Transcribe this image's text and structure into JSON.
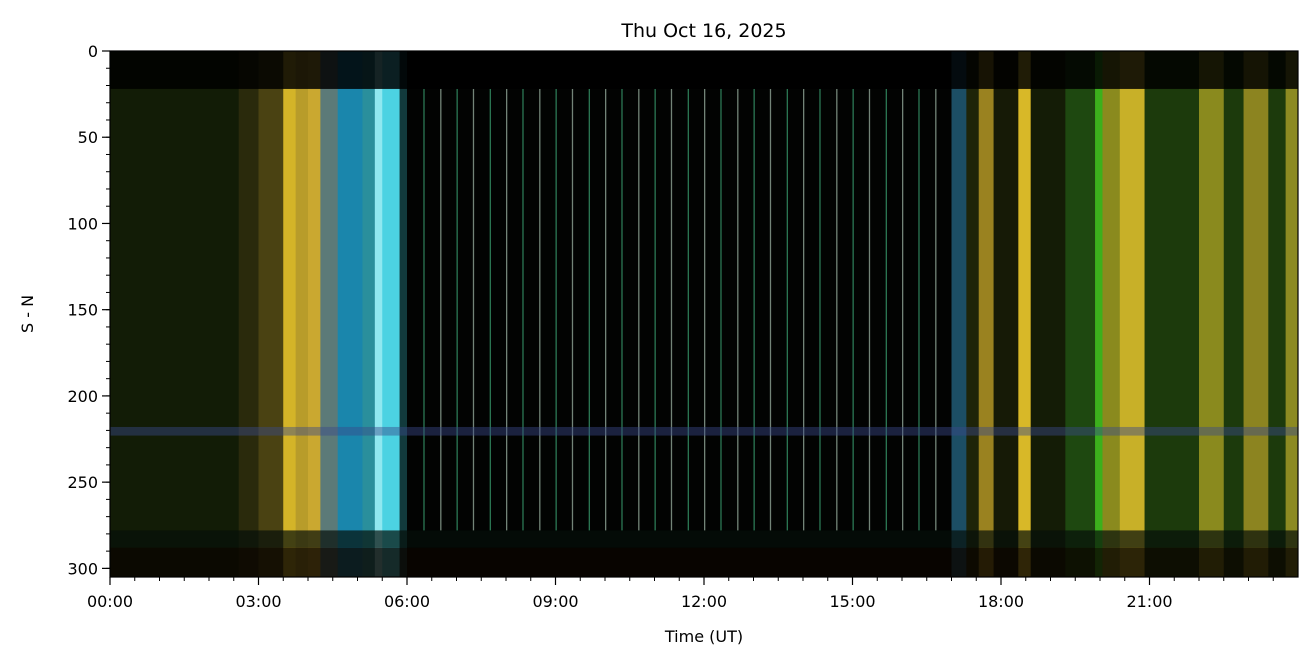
{
  "chart_data": {
    "type": "heatmap",
    "title": "Thu Oct 16, 2025",
    "xlabel": "Time (UT)",
    "ylabel": "S - N",
    "xlim_hours": [
      0,
      24
    ],
    "ylim": [
      305,
      0
    ],
    "x_ticks": [
      {
        "h": 0,
        "label": "00:00"
      },
      {
        "h": 3,
        "label": "03:00"
      },
      {
        "h": 6,
        "label": "06:00"
      },
      {
        "h": 9,
        "label": "09:00"
      },
      {
        "h": 12,
        "label": "12:00"
      },
      {
        "h": 15,
        "label": "15:00"
      },
      {
        "h": 18,
        "label": "18:00"
      },
      {
        "h": 21,
        "label": "21:00"
      }
    ],
    "x_minor_step_hours": 0.5,
    "y_ticks": [
      0,
      50,
      100,
      150,
      200,
      250,
      300
    ],
    "y_minor_step": 10,
    "grid": false,
    "bands": [
      {
        "start": 0.0,
        "end": 2.6,
        "color": "#121c06"
      },
      {
        "start": 2.6,
        "end": 3.0,
        "color": "#2a2a0c"
      },
      {
        "start": 3.0,
        "end": 3.5,
        "color": "#4a4212"
      },
      {
        "start": 3.5,
        "end": 3.75,
        "color": "#d4b428"
      },
      {
        "start": 3.75,
        "end": 4.0,
        "color": "#b89c2a"
      },
      {
        "start": 4.0,
        "end": 4.25,
        "color": "#caa830"
      },
      {
        "start": 4.25,
        "end": 4.6,
        "color": "#5c7a78"
      },
      {
        "start": 4.6,
        "end": 5.1,
        "color": "#1a86ac"
      },
      {
        "start": 5.1,
        "end": 5.35,
        "color": "#2a8f9c"
      },
      {
        "start": 5.35,
        "end": 5.5,
        "color": "#90e8f0"
      },
      {
        "start": 5.5,
        "end": 5.85,
        "color": "#4cd2e2"
      },
      {
        "start": 5.85,
        "end": 6.0,
        "color": "#123a3c"
      },
      {
        "start": 6.0,
        "end": 17.0,
        "color": "#020302"
      },
      {
        "start": 17.0,
        "end": 17.3,
        "color": "#1c4e64"
      },
      {
        "start": 17.3,
        "end": 17.55,
        "color": "#1e2408"
      },
      {
        "start": 17.55,
        "end": 17.85,
        "color": "#9a8220"
      },
      {
        "start": 17.85,
        "end": 18.35,
        "color": "#161a06"
      },
      {
        "start": 18.35,
        "end": 18.6,
        "color": "#d8b828"
      },
      {
        "start": 18.6,
        "end": 19.3,
        "color": "#141c06"
      },
      {
        "start": 19.3,
        "end": 19.9,
        "color": "#1e4810"
      },
      {
        "start": 19.9,
        "end": 20.05,
        "color": "#3cb01c"
      },
      {
        "start": 20.05,
        "end": 20.4,
        "color": "#8a8a1e"
      },
      {
        "start": 20.4,
        "end": 20.9,
        "color": "#c8b028"
      },
      {
        "start": 20.9,
        "end": 22.0,
        "color": "#1c3a0c"
      },
      {
        "start": 22.0,
        "end": 22.5,
        "color": "#8a8a1e"
      },
      {
        "start": 22.5,
        "end": 22.9,
        "color": "#1c3a0c"
      },
      {
        "start": 22.9,
        "end": 23.4,
        "color": "#8c8420"
      },
      {
        "start": 23.4,
        "end": 23.75,
        "color": "#1c3a0c"
      },
      {
        "start": 23.75,
        "end": 24.0,
        "color": "#8c8a22"
      }
    ],
    "night_lines": [
      6.33,
      6.67,
      7.0,
      7.33,
      7.67,
      8.0,
      8.33,
      8.67,
      9.0,
      9.33,
      9.67,
      10.0,
      10.33,
      10.67,
      11.0,
      11.33,
      11.67,
      12.0,
      12.33,
      12.67,
      13.0,
      13.33,
      13.67,
      14.0,
      14.33,
      14.67,
      15.0,
      15.33,
      15.67,
      16.0,
      16.33,
      16.67
    ],
    "night_line_colors": [
      "#3aa070",
      "#9ab0a0"
    ],
    "row_overlays": [
      {
        "y0": 0,
        "y1": 22,
        "color": "#000000",
        "opacity": 0.85
      },
      {
        "y0": 218,
        "y1": 223,
        "color": "#3a4a8a",
        "opacity": 0.45
      },
      {
        "y0": 278,
        "y1": 288,
        "color": "#05100a",
        "opacity": 0.7
      },
      {
        "y0": 288,
        "y1": 305,
        "color": "#0a0500",
        "opacity": 0.82
      }
    ]
  }
}
